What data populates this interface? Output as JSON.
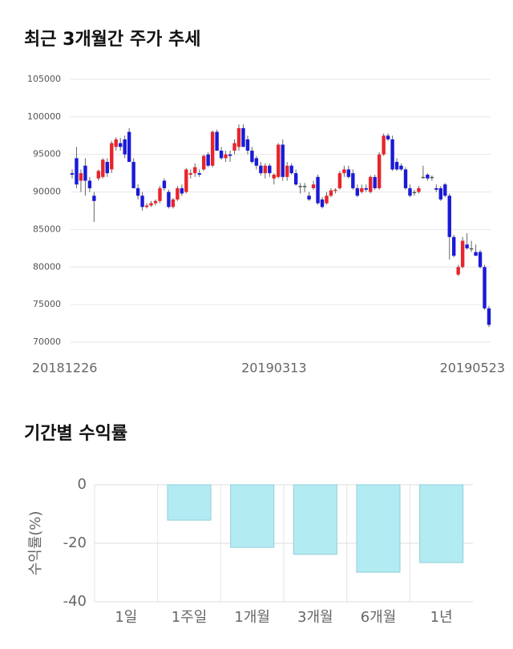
{
  "chart_data": [
    {
      "type": "candlestick",
      "title": "최근 3개월간 주가 추세",
      "categories": [
        "20181226",
        null,
        null,
        null,
        null,
        null,
        null,
        null,
        null,
        null,
        null,
        null,
        null,
        null,
        null,
        null,
        null,
        null,
        null,
        null,
        null,
        null,
        null,
        null,
        null,
        null,
        null,
        null,
        null,
        null,
        null,
        null,
        null,
        null,
        null,
        null,
        null,
        null,
        null,
        null,
        null,
        null,
        null,
        null,
        null,
        null,
        "20190313",
        null,
        null,
        null,
        null,
        null,
        null,
        null,
        null,
        null,
        null,
        null,
        null,
        null,
        null,
        null,
        null,
        null,
        null,
        null,
        null,
        null,
        null,
        null,
        null,
        null,
        null,
        null,
        null,
        null,
        null,
        null,
        null,
        null,
        null,
        null,
        null,
        null,
        null,
        null,
        null,
        null,
        null,
        null,
        null,
        null,
        null,
        null,
        null,
        "20190523"
      ],
      "ohlc": [
        [
          92500,
          93000,
          91800,
          92300
        ],
        [
          94500,
          96000,
          90500,
          91000
        ],
        [
          91500,
          93000,
          90000,
          92500
        ],
        [
          93500,
          94500,
          89500,
          91500
        ],
        [
          91500,
          92000,
          90000,
          90500
        ],
        [
          89500,
          90000,
          86000,
          88800
        ],
        [
          91800,
          93000,
          91500,
          92800
        ],
        [
          92000,
          94500,
          91800,
          94300
        ],
        [
          94000,
          94500,
          92000,
          92500
        ],
        [
          93000,
          96800,
          92500,
          96500
        ],
        [
          96000,
          97300,
          95500,
          97000
        ],
        [
          96500,
          97200,
          95500,
          96000
        ],
        [
          97000,
          97500,
          94500,
          95000
        ],
        [
          98000,
          98500,
          94000,
          94000
        ],
        [
          94000,
          94500,
          90500,
          90500
        ],
        [
          90500,
          91000,
          89000,
          89500
        ],
        [
          89500,
          90000,
          87500,
          88000
        ],
        [
          88000,
          88500,
          87800,
          88200
        ],
        [
          88200,
          88800,
          88000,
          88500
        ],
        [
          88500,
          89000,
          88200,
          88800
        ],
        [
          88800,
          90800,
          88500,
          90500
        ],
        [
          91500,
          91800,
          90200,
          90500
        ],
        [
          90000,
          90300,
          87800,
          88000
        ],
        [
          88000,
          89200,
          87800,
          89000
        ],
        [
          89000,
          90800,
          88800,
          90500
        ],
        [
          90500,
          91000,
          89500,
          89800
        ],
        [
          90000,
          93200,
          89800,
          93000
        ],
        [
          92300,
          93000,
          91800,
          92500
        ],
        [
          92500,
          93800,
          92000,
          93300
        ],
        [
          92500,
          93000,
          92000,
          92300
        ],
        [
          93000,
          95000,
          92800,
          94800
        ],
        [
          95000,
          95300,
          93300,
          93500
        ],
        [
          93500,
          98200,
          93300,
          98000
        ],
        [
          98000,
          98300,
          95500,
          95500
        ],
        [
          95500,
          96000,
          94300,
          94500
        ],
        [
          94500,
          95500,
          94000,
          95000
        ],
        [
          95000,
          95500,
          94000,
          94800
        ],
        [
          95500,
          97000,
          95000,
          96500
        ],
        [
          96000,
          99000,
          95500,
          98500
        ],
        [
          98500,
          99000,
          96000,
          96000
        ],
        [
          97000,
          97500,
          95000,
          95500
        ],
        [
          95500,
          96000,
          93800,
          94000
        ],
        [
          94500,
          94800,
          93000,
          93500
        ],
        [
          93500,
          94000,
          92200,
          92500
        ],
        [
          92500,
          93800,
          91800,
          93500
        ],
        [
          93500,
          93800,
          92000,
          92500
        ],
        [
          91800,
          92500,
          91000,
          92300
        ],
        [
          92000,
          96500,
          91800,
          96300
        ],
        [
          96300,
          97000,
          91500,
          92000
        ],
        [
          92000,
          94000,
          91500,
          93500
        ],
        [
          93500,
          93800,
          92300,
          92500
        ],
        [
          92500,
          93000,
          90800,
          91000
        ],
        [
          90800,
          91200,
          89800,
          90800
        ],
        [
          90800,
          91200,
          90000,
          90800
        ],
        [
          89500,
          90000,
          88800,
          89000
        ],
        [
          90500,
          91500,
          90300,
          91000
        ],
        [
          92000,
          92300,
          88300,
          88500
        ],
        [
          89000,
          89300,
          87800,
          88000
        ],
        [
          88500,
          90000,
          88300,
          89500
        ],
        [
          89500,
          90500,
          89300,
          90200
        ],
        [
          90200,
          90500,
          89800,
          90300
        ],
        [
          90500,
          92800,
          90300,
          92500
        ],
        [
          92500,
          93500,
          92000,
          93000
        ],
        [
          93000,
          93500,
          91800,
          92000
        ],
        [
          92500,
          93000,
          90300,
          90500
        ],
        [
          90500,
          91000,
          89300,
          89500
        ],
        [
          90000,
          91000,
          89800,
          90500
        ],
        [
          90500,
          91000,
          90000,
          90300
        ],
        [
          90000,
          92200,
          89800,
          92000
        ],
        [
          92000,
          92300,
          90300,
          90500
        ],
        [
          90500,
          95300,
          90300,
          95000
        ],
        [
          95000,
          97800,
          94800,
          97500
        ],
        [
          97500,
          97800,
          96800,
          97000
        ],
        [
          97000,
          97500,
          92800,
          93000
        ],
        [
          94000,
          94500,
          92800,
          93000
        ],
        [
          93500,
          93800,
          92800,
          93000
        ],
        [
          93000,
          93300,
          90300,
          90500
        ],
        [
          90500,
          91000,
          89300,
          89500
        ],
        [
          90000,
          90300,
          89500,
          90000
        ],
        [
          90000,
          90800,
          89800,
          90500
        ],
        [
          92000,
          93500,
          91800,
          92000
        ],
        [
          92300,
          92500,
          91500,
          91800
        ],
        [
          92000,
          92200,
          91500,
          92000
        ],
        [
          90500,
          91000,
          90000,
          90300
        ],
        [
          90500,
          90800,
          88800,
          89000
        ],
        [
          91000,
          91200,
          89300,
          89500
        ],
        [
          89500,
          89800,
          81000,
          84000
        ],
        [
          84000,
          84300,
          81300,
          81500
        ],
        [
          79000,
          80300,
          78800,
          80000
        ],
        [
          80000,
          84000,
          79800,
          83500
        ],
        [
          83000,
          84500,
          82300,
          82500
        ],
        [
          82500,
          83500,
          82000,
          82500
        ],
        [
          82000,
          83000,
          81500,
          81500
        ],
        [
          82000,
          82300,
          79800,
          80000
        ],
        [
          80000,
          80300,
          74300,
          74500
        ],
        [
          74500,
          74800,
          72000,
          72300
        ]
      ],
      "up_color": "#e8252b",
      "down_color": "#1a1ad8",
      "ylim": [
        70000,
        105000
      ],
      "yticks": [
        70000,
        75000,
        80000,
        85000,
        90000,
        95000,
        100000,
        105000
      ],
      "grid": true
    },
    {
      "type": "bar",
      "title": "기간별 수익률",
      "y_label": "수익률(%)",
      "categories": [
        "1일",
        "1주일",
        "1개월",
        "3개월",
        "6개월",
        "1년"
      ],
      "values": [
        0,
        -12.1,
        -21.4,
        -23.8,
        -29.9,
        -26.6
      ],
      "color": "#b3ebf2",
      "edge_color": "#8ccfd9",
      "ylim": [
        -40,
        0
      ],
      "yticks": [
        0,
        -20,
        -40
      ],
      "grid": true
    }
  ]
}
